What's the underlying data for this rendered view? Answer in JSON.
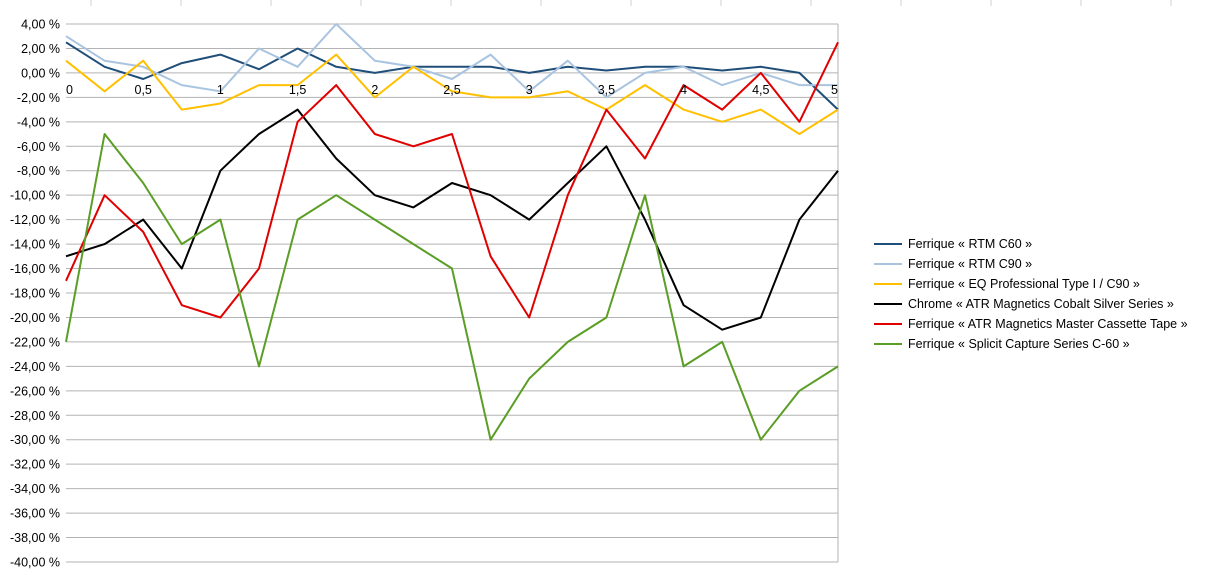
{
  "chart_data": {
    "type": "line",
    "title": "",
    "xlabel": "",
    "ylabel": "",
    "xlim": [
      0,
      5
    ],
    "ylim": [
      -40,
      4
    ],
    "x_tick_labels": [
      "0",
      "0,5",
      "1",
      "1,5",
      "2",
      "2,5",
      "3",
      "3,5",
      "4",
      "4,5",
      "5"
    ],
    "y_tick_labels": [
      "4,00 %",
      "2,00 %",
      "0,00 %",
      "-2,00 %",
      "-4,00 %",
      "-6,00 %",
      "-8,00 %",
      "-10,00 %",
      "-12,00 %",
      "-14,00 %",
      "-16,00 %",
      "-18,00 %",
      "-20,00 %",
      "-22,00 %",
      "-24,00 %",
      "-26,00 %",
      "-28,00 %",
      "-30,00 %",
      "-32,00 %",
      "-34,00 %",
      "-36,00 %",
      "-38,00 %",
      "-40,00 %"
    ],
    "grid": true,
    "legend_position": "right",
    "series": [
      {
        "name": "Ferrique « RTM C60 »",
        "color": "#1f4e79",
        "x": [
          0,
          0.25,
          0.5,
          0.75,
          1,
          1.25,
          1.5,
          1.75,
          2,
          2.25,
          2.5,
          2.75,
          3,
          3.25,
          3.5,
          3.75,
          4,
          4.25,
          4.5,
          4.75,
          5
        ],
        "y": [
          2.5,
          0.5,
          -0.5,
          0.8,
          1.5,
          0.3,
          2.0,
          0.5,
          0.0,
          0.5,
          0.5,
          0.5,
          0.0,
          0.5,
          0.2,
          0.5,
          0.5,
          0.2,
          0.5,
          0.0,
          -3.0
        ]
      },
      {
        "name": "Ferrique « RTM C90 »",
        "color": "#a9c4e0",
        "x": [
          0,
          0.25,
          0.5,
          0.75,
          1,
          1.25,
          1.5,
          1.75,
          2,
          2.25,
          2.5,
          2.75,
          3,
          3.25,
          3.5,
          3.75,
          4,
          4.25,
          4.5,
          4.75,
          5
        ],
        "y": [
          3.0,
          1.0,
          0.5,
          -1.0,
          -1.5,
          2.0,
          0.5,
          4.0,
          1.0,
          0.5,
          -0.5,
          1.5,
          -1.5,
          1.0,
          -2.0,
          0.0,
          0.5,
          -1.0,
          0.0,
          -1.0,
          -1.0
        ]
      },
      {
        "name": "Ferrique « EQ Professional Type I / C90 »",
        "color": "#ffc000",
        "x": [
          0,
          0.25,
          0.5,
          0.75,
          1,
          1.25,
          1.5,
          1.75,
          2,
          2.25,
          2.5,
          2.75,
          3,
          3.25,
          3.5,
          3.75,
          4,
          4.25,
          4.5,
          4.75,
          5
        ],
        "y": [
          1.0,
          -1.5,
          1.0,
          -3.0,
          -2.5,
          -1.0,
          -1.0,
          1.5,
          -2.0,
          0.5,
          -1.5,
          -2.0,
          -2.0,
          -1.5,
          -3.0,
          -1.0,
          -3.0,
          -4.0,
          -3.0,
          -5.0,
          -3.0
        ]
      },
      {
        "name": "Chrome « ATR Magnetics Cobalt Silver Series »",
        "color": "#000000",
        "x": [
          0,
          0.25,
          0.5,
          0.75,
          1,
          1.25,
          1.5,
          1.75,
          2,
          2.25,
          2.5,
          2.75,
          3,
          3.25,
          3.5,
          3.75,
          4,
          4.25,
          4.5,
          4.75,
          5
        ],
        "y": [
          -15.0,
          -14.0,
          -12.0,
          -16.0,
          -8.0,
          -5.0,
          -3.0,
          -7.0,
          -10.0,
          -11.0,
          -9.0,
          -10.0,
          -12.0,
          -9.0,
          -6.0,
          -12.0,
          -19.0,
          -21.0,
          -20.0,
          -12.0,
          -8.0
        ]
      },
      {
        "name": "Ferrique « ATR Magnetics Master Cassette Tape »",
        "color": "#e00000",
        "x": [
          0,
          0.25,
          0.5,
          0.75,
          1,
          1.25,
          1.5,
          1.75,
          2,
          2.25,
          2.5,
          2.75,
          3,
          3.25,
          3.5,
          3.75,
          4,
          4.25,
          4.5,
          4.75,
          5
        ],
        "y": [
          -17.0,
          -10.0,
          -13.0,
          -19.0,
          -20.0,
          -16.0,
          -4.0,
          -1.0,
          -5.0,
          -6.0,
          -5.0,
          -15.0,
          -20.0,
          -10.0,
          -3.0,
          -7.0,
          -1.0,
          -3.0,
          0.0,
          -4.0,
          2.5
        ]
      },
      {
        "name": "Ferrique « Splicit Capture Series C-60 »",
        "color": "#5a9e25",
        "x": [
          0,
          0.25,
          0.5,
          0.75,
          1,
          1.25,
          1.5,
          1.75,
          2,
          2.25,
          2.5,
          2.75,
          3,
          3.25,
          3.5,
          3.75,
          4,
          4.25,
          4.5,
          4.75,
          5
        ],
        "y": [
          -22.0,
          -5.0,
          -9.0,
          -14.0,
          -12.0,
          -24.0,
          -12.0,
          -10.0,
          -12.0,
          -14.0,
          -16.0,
          -30.0,
          -25.0,
          -22.0,
          -20.0,
          -10.0,
          -24.0,
          -22.0,
          -30.0,
          -26.0,
          -24.0
        ]
      }
    ]
  }
}
